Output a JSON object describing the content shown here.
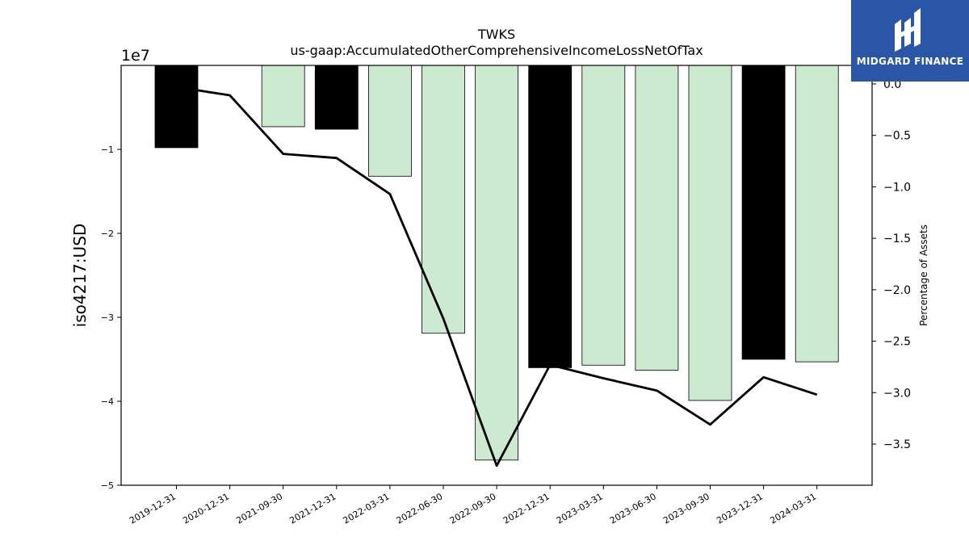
{
  "chart_data": {
    "type": "bar",
    "title": "TWKS",
    "subtitle": "us-gaap:AccumulatedOtherComprehensiveIncomeLossNetOfTax",
    "ylabel": "iso4217:USD",
    "y2label": "Percentage of Assets",
    "y_offset_label": "1e7",
    "y_multiplier": 10000000,
    "ylim": [
      -5.0,
      -0.0
    ],
    "y2lim": [
      -3.9,
      0.18
    ],
    "yticks": [
      -1,
      -2,
      -3,
      -4,
      -5
    ],
    "y2ticks": [
      0.0,
      -0.5,
      -1.0,
      -1.5,
      -2.0,
      -2.5,
      -3.0,
      -3.5
    ],
    "categories": [
      "2019-12-31",
      "2020-12-31",
      "2021-09-30",
      "2021-12-31",
      "2022-03-31",
      "2022-06-30",
      "2022-09-30",
      "2022-12-31",
      "2023-03-31",
      "2023-06-30",
      "2023-09-30",
      "2023-12-31",
      "2024-03-31"
    ],
    "series": [
      {
        "axis": "left",
        "kind": "bar",
        "values": [
          -0.98,
          null,
          -0.73,
          -0.76,
          -1.32,
          -3.19,
          -4.7,
          -3.6,
          -3.57,
          -3.63,
          -3.99,
          -3.5,
          -3.53
        ],
        "colors": [
          "#000000",
          null,
          "#ccead0",
          "#000000",
          "#ccead0",
          "#ccead0",
          "#ccead0",
          "#000000",
          "#ccead0",
          "#ccead0",
          "#ccead0",
          "#000000",
          "#ccead0"
        ]
      },
      {
        "axis": "right",
        "kind": "line",
        "color": "#000000",
        "values": [
          -0.03,
          -0.11,
          -0.68,
          -0.72,
          -1.07,
          -2.28,
          -3.71,
          -2.73,
          -2.86,
          -2.98,
          -3.31,
          -2.85,
          -3.02
        ]
      }
    ],
    "grid": false
  },
  "logo": {
    "text": "MIDGARD FINANCE"
  }
}
